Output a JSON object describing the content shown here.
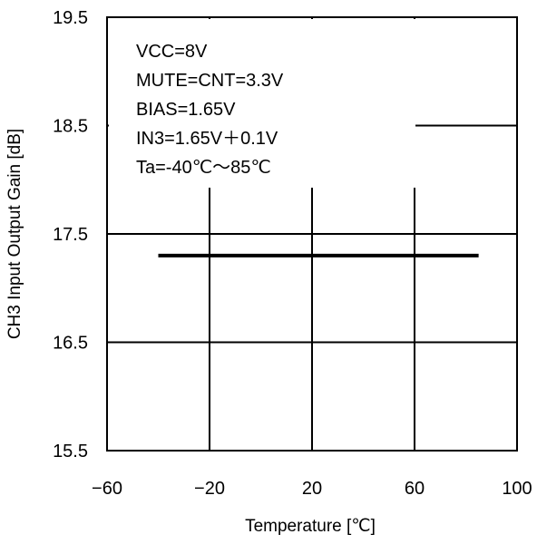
{
  "chart_data": {
    "type": "line",
    "title": "",
    "xlabel": "Temperature [℃]",
    "ylabel": "CH3 Input Output Gain [dB]",
    "xlim": [
      -60,
      100
    ],
    "ylim": [
      15.5,
      19.5
    ],
    "x_ticks": [
      -60,
      -20,
      20,
      60,
      100
    ],
    "x_tick_labels": [
      "−60",
      "−20",
      "20",
      "60",
      "100"
    ],
    "y_ticks": [
      15.5,
      16.5,
      17.5,
      18.5,
      19.5
    ],
    "y_tick_labels": [
      "15.5",
      "16.5",
      "17.5",
      "18.5",
      "19.5"
    ],
    "grid": true,
    "legend": "none",
    "series": [
      {
        "color": "#000000",
        "x": [
          -40,
          85
        ],
        "y": [
          17.3,
          17.3
        ]
      }
    ],
    "annotation": {
      "placement": "top-left",
      "lines": [
        "VCC=8V",
        "MUTE=CNT=3.3V",
        "BIAS=1.65V",
        "IN3=1.65V＋0.1V",
        "Ta=-40℃～85℃"
      ]
    }
  }
}
